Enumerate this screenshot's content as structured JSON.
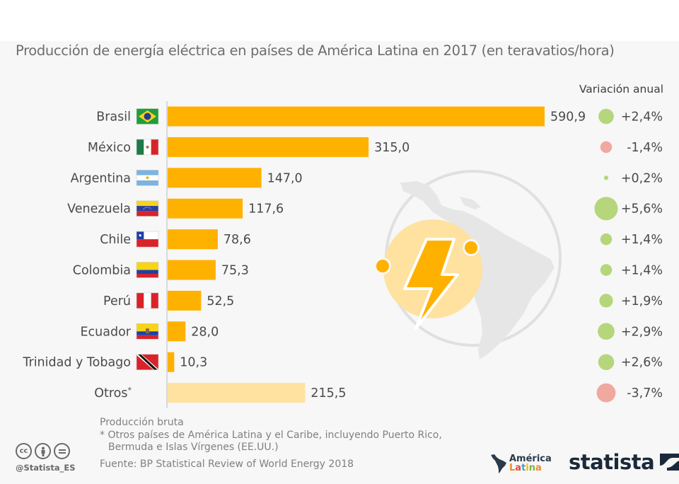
{
  "chart_data": {
    "type": "bar",
    "orientation": "horizontal",
    "title": "Producción de energía eléctrica en países de América Latina en 2017 (en teravatios/hora)",
    "xlabel": "",
    "ylabel": "",
    "xlim": [
      0,
      590.9
    ],
    "grid": false,
    "categories": [
      "Brasil",
      "México",
      "Argentina",
      "Venezuela",
      "Chile",
      "Colombia",
      "Perú",
      "Ecuador",
      "Trinidad y Tobago",
      "Otros"
    ],
    "category_suffix": [
      "",
      "",
      "",
      "",
      "",
      "",
      "",
      "",
      "",
      "*"
    ],
    "values": [
      590.9,
      315.0,
      147.0,
      117.6,
      78.6,
      75.3,
      52.5,
      28.0,
      10.3,
      215.5
    ],
    "value_labels": [
      "590,9",
      "315,0",
      "147,0",
      "117,6",
      "78,6",
      "75,3",
      "52,5",
      "28,0",
      "10,3",
      "215,5"
    ],
    "flags": [
      "brazil-flag",
      "mexico-flag",
      "argentina-flag",
      "venezuela-flag",
      "chile-flag",
      "colombia-flag",
      "peru-flag",
      "ecuador-flag",
      "trinidad-tobago-flag",
      null
    ],
    "bar_colors": [
      "#ffb100",
      "#ffb100",
      "#ffb100",
      "#ffb100",
      "#ffb100",
      "#ffb100",
      "#ffb100",
      "#ffb100",
      "#ffb100",
      "#ffe1a0"
    ],
    "annual_variation": {
      "header": "Variación anual",
      "values": [
        2.4,
        -1.4,
        0.2,
        5.6,
        1.4,
        1.4,
        1.9,
        2.9,
        2.6,
        -3.7
      ],
      "labels": [
        "+2,4%",
        "-1,4%",
        "+0,2%",
        "+5,6%",
        "+1,4%",
        "+1,4%",
        "+1,9%",
        "+2,9%",
        "+2,6%",
        "-3,7%"
      ],
      "positive_color": "#b5d67a",
      "negative_color": "#f0a8a0"
    }
  },
  "notes": {
    "line1": "Producción bruta",
    "line2": "* Otros países de América Latina y el Caribe, incluyendo Puerto Rico,",
    "line3": "Bermuda e Islas Vírgenes (EE.UU.)",
    "source": "Fuente: BP Statistical Review of World Energy 2018"
  },
  "footer": {
    "license_icons": [
      "cc-icon",
      "by-icon",
      "nd-icon"
    ],
    "cc_text": "cc",
    "handle": "@Statista_ES",
    "partner_logo_line1": "América",
    "partner_logo_line2": [
      "L",
      "a",
      "t",
      "i",
      "n",
      "a"
    ],
    "brand": "statista"
  },
  "colors": {
    "bar": "#ffb100",
    "bar_other": "#ffe1a0",
    "background": "#f7f7f7",
    "illustration_gray": "#e4e4e4",
    "illustration_yellow_light": "#ffe1a0"
  }
}
